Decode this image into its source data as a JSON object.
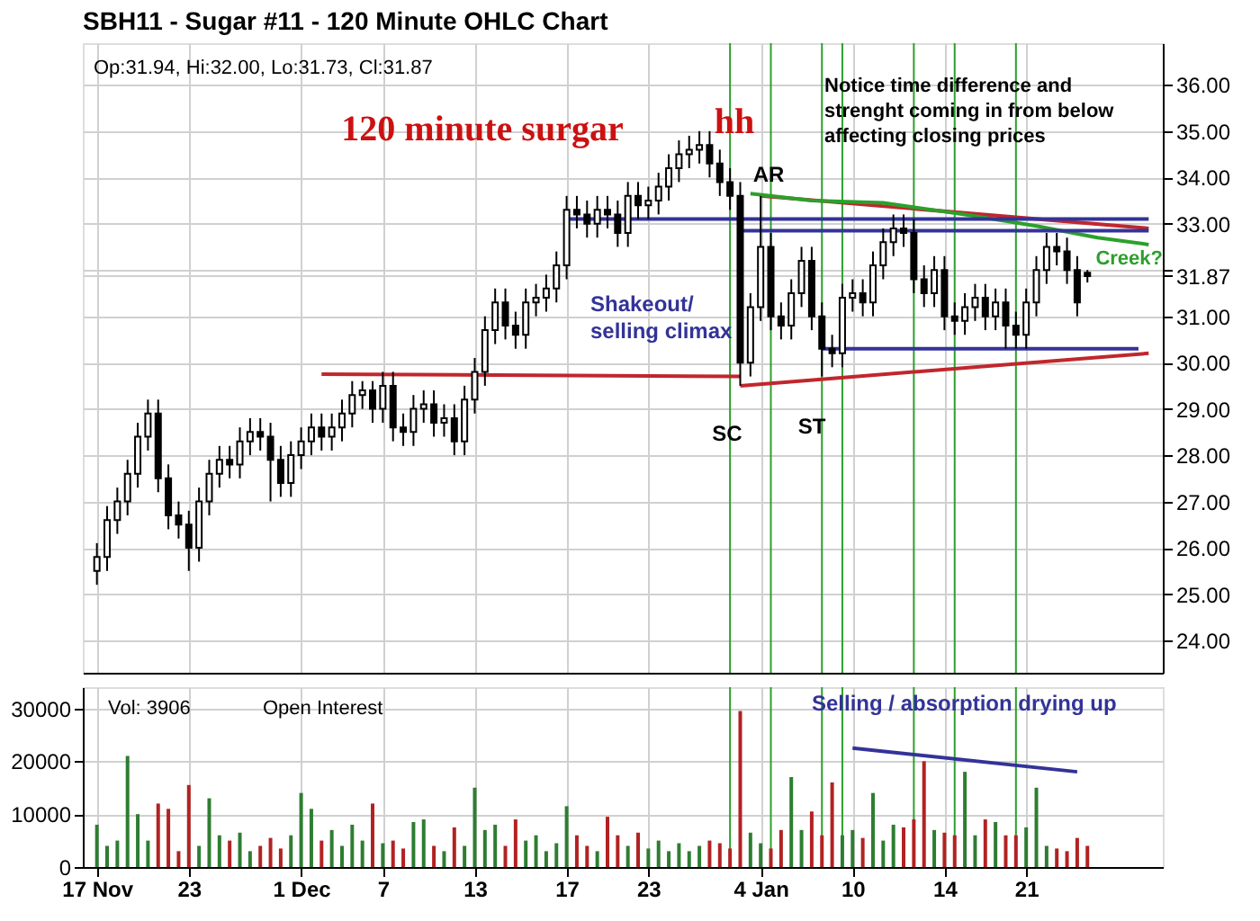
{
  "chart_data": [
    {
      "type": "candlestick",
      "title": "SBH11 - Sugar #11 - 120 Minute OHLC Chart",
      "categories": [
        "17 Nov",
        null,
        null,
        null,
        null,
        null,
        null,
        null,
        null,
        "23",
        null,
        null,
        null,
        null,
        null,
        null,
        null,
        null,
        null,
        null,
        "1 Dec",
        null,
        null,
        null,
        null,
        null,
        null,
        null,
        "7",
        null,
        null,
        null,
        null,
        null,
        null,
        null,
        null,
        "13",
        null,
        null,
        null,
        null,
        null,
        null,
        null,
        null,
        "17",
        null,
        null,
        null,
        null,
        null,
        null,
        null,
        "23",
        null,
        null,
        null,
        null,
        null,
        null,
        null,
        null,
        null,
        null,
        "4 Jan",
        null,
        null,
        null,
        null,
        null,
        null,
        null,
        null,
        "10",
        null,
        null,
        null,
        null,
        null,
        null,
        null,
        null,
        "14",
        null,
        null,
        null,
        null,
        null,
        null,
        null,
        "21",
        null,
        null,
        null,
        null,
        null,
        null,
        null,
        null,
        null,
        null,
        null,
        null
      ],
      "ohlc": [
        [
          25.5,
          26.1,
          25.2,
          25.8
        ],
        [
          25.8,
          26.9,
          25.5,
          26.6
        ],
        [
          26.6,
          27.3,
          26.3,
          27.0
        ],
        [
          27.0,
          27.9,
          26.7,
          27.6
        ],
        [
          27.6,
          28.7,
          27.3,
          28.4
        ],
        [
          28.4,
          29.2,
          28.1,
          28.9
        ],
        [
          28.9,
          29.2,
          27.2,
          27.5
        ],
        [
          27.5,
          27.8,
          26.4,
          26.7
        ],
        [
          26.7,
          27.0,
          26.2,
          26.5
        ],
        [
          26.5,
          26.8,
          25.5,
          26.0
        ],
        [
          26.0,
          27.3,
          25.7,
          27.0
        ],
        [
          27.0,
          27.9,
          26.7,
          27.6
        ],
        [
          27.6,
          28.2,
          27.3,
          27.9
        ],
        [
          27.9,
          28.2,
          27.5,
          27.8
        ],
        [
          27.8,
          28.6,
          27.5,
          28.3
        ],
        [
          28.3,
          28.8,
          28.0,
          28.5
        ],
        [
          28.5,
          28.8,
          28.1,
          28.4
        ],
        [
          28.4,
          28.7,
          27.0,
          27.9
        ],
        [
          27.9,
          28.2,
          27.1,
          27.4
        ],
        [
          27.4,
          28.3,
          27.1,
          28.0
        ],
        [
          28.0,
          28.6,
          27.7,
          28.3
        ],
        [
          28.3,
          28.9,
          28.0,
          28.6
        ],
        [
          28.6,
          28.9,
          28.1,
          28.4
        ],
        [
          28.4,
          28.9,
          28.1,
          28.6
        ],
        [
          28.6,
          29.2,
          28.3,
          28.9
        ],
        [
          28.9,
          29.6,
          28.6,
          29.3
        ],
        [
          29.3,
          29.6,
          29.0,
          29.4
        ],
        [
          29.4,
          29.6,
          28.7,
          29.0
        ],
        [
          29.0,
          29.8,
          28.7,
          29.5
        ],
        [
          29.5,
          29.8,
          28.3,
          28.6
        ],
        [
          28.6,
          28.9,
          28.2,
          28.5
        ],
        [
          28.5,
          29.3,
          28.2,
          29.0
        ],
        [
          29.0,
          29.4,
          28.7,
          29.1
        ],
        [
          29.1,
          29.4,
          28.4,
          28.7
        ],
        [
          28.7,
          29.1,
          28.4,
          28.8
        ],
        [
          28.8,
          29.1,
          28.0,
          28.3
        ],
        [
          28.3,
          29.5,
          28.0,
          29.2
        ],
        [
          29.2,
          30.1,
          28.9,
          29.8
        ],
        [
          29.8,
          31.0,
          29.5,
          30.7
        ],
        [
          30.7,
          31.6,
          30.4,
          31.3
        ],
        [
          31.3,
          31.6,
          30.5,
          30.8
        ],
        [
          30.8,
          31.1,
          30.3,
          30.6
        ],
        [
          30.6,
          31.6,
          30.3,
          31.3
        ],
        [
          31.3,
          31.7,
          31.0,
          31.4
        ],
        [
          31.4,
          31.9,
          31.1,
          31.6
        ],
        [
          31.6,
          32.4,
          31.3,
          32.1
        ],
        [
          32.1,
          33.6,
          31.8,
          33.3
        ],
        [
          33.3,
          33.6,
          32.9,
          33.2
        ],
        [
          33.2,
          33.5,
          32.7,
          33.0
        ],
        [
          33.0,
          33.6,
          32.7,
          33.3
        ],
        [
          33.3,
          33.6,
          32.9,
          33.2
        ],
        [
          33.2,
          33.5,
          32.5,
          32.8
        ],
        [
          32.8,
          33.9,
          32.5,
          33.6
        ],
        [
          33.6,
          33.9,
          33.1,
          33.4
        ],
        [
          33.4,
          33.8,
          33.1,
          33.5
        ],
        [
          33.5,
          34.1,
          33.2,
          33.8
        ],
        [
          33.8,
          34.5,
          33.5,
          34.2
        ],
        [
          34.2,
          34.8,
          33.9,
          34.5
        ],
        [
          34.5,
          34.9,
          34.2,
          34.6
        ],
        [
          34.6,
          35.0,
          34.3,
          34.7
        ],
        [
          34.7,
          35.0,
          34.0,
          34.3
        ],
        [
          34.3,
          34.6,
          33.6,
          33.9
        ],
        [
          33.9,
          34.2,
          33.3,
          33.6
        ],
        [
          33.6,
          33.9,
          29.5,
          30.0
        ],
        [
          30.0,
          31.5,
          29.7,
          31.2
        ],
        [
          31.2,
          33.6,
          30.9,
          32.5
        ],
        [
          32.5,
          32.8,
          30.7,
          31.0
        ],
        [
          31.0,
          31.3,
          30.5,
          30.8
        ],
        [
          30.8,
          31.8,
          30.5,
          31.5
        ],
        [
          31.5,
          32.5,
          31.2,
          32.2
        ],
        [
          32.2,
          32.5,
          30.7,
          31.0
        ],
        [
          31.0,
          31.3,
          29.7,
          30.3
        ],
        [
          30.3,
          30.6,
          29.9,
          30.2
        ],
        [
          30.2,
          31.7,
          29.9,
          31.4
        ],
        [
          31.4,
          31.8,
          31.1,
          31.5
        ],
        [
          31.5,
          31.8,
          31.0,
          31.3
        ],
        [
          31.3,
          32.4,
          31.0,
          32.1
        ],
        [
          32.1,
          32.9,
          31.8,
          32.6
        ],
        [
          32.6,
          33.2,
          32.3,
          32.9
        ],
        [
          32.9,
          33.2,
          32.5,
          32.8
        ],
        [
          32.8,
          33.1,
          31.5,
          31.8
        ],
        [
          31.8,
          32.1,
          31.2,
          31.5
        ],
        [
          31.5,
          32.3,
          31.2,
          32.0
        ],
        [
          32.0,
          32.3,
          30.7,
          31.0
        ],
        [
          31.0,
          31.3,
          30.6,
          30.9
        ],
        [
          30.9,
          31.5,
          30.6,
          31.2
        ],
        [
          31.2,
          31.7,
          30.9,
          31.4
        ],
        [
          31.4,
          31.7,
          30.7,
          31.0
        ],
        [
          31.0,
          31.6,
          30.7,
          31.3
        ],
        [
          31.3,
          31.6,
          30.3,
          30.8
        ],
        [
          30.8,
          31.1,
          30.3,
          30.6
        ],
        [
          30.6,
          31.6,
          30.3,
          31.3
        ],
        [
          31.3,
          32.3,
          31.0,
          32.0
        ],
        [
          32.0,
          32.8,
          31.7,
          32.5
        ],
        [
          32.5,
          32.8,
          32.1,
          32.4
        ],
        [
          32.4,
          32.7,
          31.7,
          32.0
        ],
        [
          32.0,
          32.3,
          31.0,
          31.3
        ],
        [
          31.94,
          32.0,
          31.73,
          31.87
        ],
        null,
        null,
        null,
        null,
        null,
        null
      ],
      "color": "#000000",
      "series": [
        {
          "type": "line",
          "color": "#c0272d",
          "values": [
            null,
            null,
            null,
            null,
            null,
            null,
            null,
            null,
            null,
            null,
            null,
            null,
            null,
            null,
            null,
            null,
            null,
            null,
            null,
            null,
            null,
            null,
            29.75,
            null,
            null,
            null,
            null,
            null,
            null,
            null,
            null,
            null,
            null,
            null,
            null,
            null,
            null,
            null,
            null,
            null,
            null,
            null,
            null,
            null,
            null,
            null,
            null,
            null,
            null,
            null,
            null,
            null,
            null,
            null,
            null,
            null,
            null,
            null,
            null,
            null,
            null,
            null,
            null,
            29.7,
            null,
            null,
            null,
            null,
            null,
            null,
            null,
            null,
            null,
            null,
            null,
            null,
            null,
            null,
            null,
            null,
            null,
            null,
            null,
            null,
            null,
            null,
            null,
            null,
            null,
            null,
            null,
            null,
            null,
            null,
            null,
            null,
            null,
            null,
            null,
            null,
            null,
            null,
            null,
            null
          ]
        },
        {
          "type": "line",
          "color": "#c0272d",
          "values": [
            null,
            null,
            null,
            null,
            null,
            null,
            null,
            null,
            null,
            null,
            null,
            null,
            null,
            null,
            null,
            null,
            null,
            null,
            null,
            null,
            null,
            null,
            null,
            null,
            null,
            null,
            null,
            null,
            null,
            null,
            null,
            null,
            null,
            null,
            null,
            null,
            null,
            null,
            null,
            null,
            null,
            null,
            null,
            null,
            null,
            null,
            null,
            null,
            null,
            null,
            null,
            null,
            null,
            null,
            null,
            null,
            null,
            null,
            null,
            null,
            null,
            null,
            null,
            29.5,
            null,
            null,
            null,
            null,
            null,
            null,
            null,
            null,
            null,
            null,
            null,
            null,
            null,
            null,
            null,
            null,
            null,
            null,
            null,
            null,
            null,
            null,
            null,
            null,
            null,
            null,
            null,
            null,
            null,
            null,
            null,
            null,
            null,
            null,
            null,
            null,
            null,
            null,
            null,
            30.2
          ]
        },
        {
          "type": "line",
          "color": "#c0272d",
          "values": [
            null,
            null,
            null,
            null,
            null,
            null,
            null,
            null,
            null,
            null,
            null,
            null,
            null,
            null,
            null,
            null,
            null,
            null,
            null,
            null,
            null,
            null,
            null,
            null,
            null,
            null,
            null,
            null,
            null,
            null,
            null,
            null,
            null,
            null,
            null,
            null,
            null,
            null,
            null,
            null,
            null,
            null,
            null,
            null,
            null,
            null,
            null,
            null,
            null,
            null,
            null,
            null,
            null,
            null,
            null,
            null,
            null,
            null,
            null,
            null,
            null,
            null,
            null,
            null,
            null,
            33.6,
            null,
            null,
            null,
            null,
            null,
            null,
            null,
            null,
            null,
            null,
            null,
            null,
            null,
            null,
            null,
            null,
            null,
            null,
            null,
            null,
            null,
            null,
            null,
            null,
            null,
            null,
            null,
            null,
            null,
            null,
            null,
            null,
            null,
            null,
            null,
            null,
            null,
            32.9
          ]
        },
        {
          "type": "line",
          "color": "#2ca02c",
          "values": [
            null,
            null,
            null,
            null,
            null,
            null,
            null,
            null,
            null,
            null,
            null,
            null,
            null,
            null,
            null,
            null,
            null,
            null,
            null,
            null,
            null,
            null,
            null,
            null,
            null,
            null,
            null,
            null,
            null,
            null,
            null,
            null,
            null,
            null,
            null,
            null,
            null,
            null,
            null,
            null,
            null,
            null,
            null,
            null,
            null,
            null,
            null,
            null,
            null,
            null,
            null,
            null,
            null,
            null,
            null,
            null,
            null,
            null,
            null,
            null,
            null,
            null,
            null,
            null,
            33.65,
            null,
            null,
            null,
            null,
            null,
            33.5,
            null,
            null,
            null,
            null,
            null,
            null,
            33.45,
            null,
            null,
            null,
            null,
            null,
            null,
            null,
            33.2,
            null,
            null,
            null,
            null,
            null,
            null,
            32.95,
            null,
            null,
            null,
            null,
            null,
            32.7,
            null,
            null,
            null,
            null,
            32.55
          ]
        },
        {
          "type": "line",
          "color": "#333399",
          "values": [
            null,
            null,
            null,
            null,
            null,
            null,
            null,
            null,
            null,
            null,
            null,
            null,
            null,
            null,
            null,
            null,
            null,
            null,
            null,
            null,
            null,
            null,
            null,
            null,
            null,
            null,
            null,
            null,
            null,
            null,
            null,
            null,
            null,
            null,
            null,
            null,
            null,
            null,
            null,
            null,
            null,
            null,
            null,
            null,
            null,
            null,
            33.1,
            null,
            null,
            null,
            null,
            null,
            null,
            null,
            null,
            null,
            null,
            null,
            null,
            null,
            null,
            null,
            null,
            null,
            null,
            null,
            null,
            null,
            null,
            null,
            null,
            null,
            null,
            null,
            null,
            null,
            null,
            null,
            null,
            null,
            null,
            null,
            null,
            null,
            null,
            null,
            null,
            null,
            null,
            null,
            null,
            null,
            null,
            null,
            null,
            null,
            null,
            null,
            null,
            null,
            null,
            null,
            null,
            33.1
          ]
        },
        {
          "type": "line",
          "color": "#333399",
          "values": [
            null,
            null,
            null,
            null,
            null,
            null,
            null,
            null,
            null,
            null,
            null,
            null,
            null,
            null,
            null,
            null,
            null,
            null,
            null,
            null,
            null,
            null,
            null,
            null,
            null,
            null,
            null,
            null,
            null,
            null,
            null,
            null,
            null,
            null,
            null,
            null,
            null,
            null,
            null,
            null,
            null,
            null,
            null,
            null,
            null,
            null,
            null,
            null,
            null,
            null,
            null,
            null,
            null,
            null,
            null,
            null,
            null,
            null,
            null,
            null,
            null,
            null,
            null,
            32.85,
            null,
            null,
            null,
            null,
            null,
            null,
            null,
            null,
            null,
            null,
            null,
            null,
            null,
            null,
            null,
            null,
            null,
            null,
            null,
            null,
            null,
            null,
            null,
            null,
            null,
            null,
            null,
            null,
            null,
            null,
            null,
            null,
            null,
            null,
            null,
            null,
            null,
            null,
            null,
            32.85
          ]
        },
        {
          "type": "line",
          "color": "#333399",
          "values": [
            null,
            null,
            null,
            null,
            null,
            null,
            null,
            null,
            null,
            null,
            null,
            null,
            null,
            null,
            null,
            null,
            null,
            null,
            null,
            null,
            null,
            null,
            null,
            null,
            null,
            null,
            null,
            null,
            null,
            null,
            null,
            null,
            null,
            null,
            null,
            null,
            null,
            null,
            null,
            null,
            null,
            null,
            null,
            null,
            null,
            null,
            null,
            null,
            null,
            null,
            null,
            null,
            null,
            null,
            null,
            null,
            null,
            null,
            null,
            null,
            null,
            null,
            null,
            null,
            null,
            null,
            null,
            null,
            null,
            null,
            null,
            30.3,
            null,
            null,
            null,
            null,
            null,
            null,
            null,
            null,
            null,
            null,
            null,
            null,
            null,
            null,
            null,
            null,
            null,
            null,
            null,
            null,
            null,
            null,
            null,
            null,
            null,
            null,
            null,
            null,
            null,
            null,
            30.3,
            null
          ]
        }
      ],
      "ylim": [
        23.3,
        36.9
      ],
      "yticks": [
        {
          "value": 24,
          "label": "24.00"
        },
        {
          "value": 25,
          "label": "25.00"
        },
        {
          "value": 26,
          "label": "26.00"
        },
        {
          "value": 27,
          "label": "27.00"
        },
        {
          "value": 28,
          "label": "28.00"
        },
        {
          "value": 29,
          "label": "29.00"
        },
        {
          "value": 30,
          "label": "30.00"
        },
        {
          "value": 31,
          "label": "31.00"
        },
        {
          "value": 31.87,
          "label": "31.87"
        },
        {
          "value": 32,
          "label": null
        },
        {
          "value": 33,
          "label": "33.00"
        },
        {
          "value": 34,
          "label": "34.00"
        },
        {
          "value": 35,
          "label": "35.00"
        },
        {
          "value": 36,
          "label": "36.00"
        }
      ],
      "tick_labels": "y",
      "grid": true,
      "annotations": [
        "Op:31.94, Hi:32.00, Lo:31.73, Cl:31.87",
        "120 minute surgar",
        "hh",
        "Shakeout/\nselling climax",
        "Notice time difference and\nstrenght coming in from below\naffecting closing prices",
        "AR",
        "SC",
        "ST",
        "Creek?"
      ]
    },
    {
      "type": "bar",
      "values": [
        8000,
        4000,
        5000,
        21000,
        10000,
        5000,
        12000,
        11000,
        3000,
        15500,
        4000,
        13000,
        6000,
        5000,
        6500,
        3000,
        4000,
        5500,
        3500,
        6000,
        14000,
        11000,
        5000,
        7000,
        4000,
        8000,
        5000,
        12000,
        4500,
        5000,
        3500,
        8500,
        9000,
        4000,
        3000,
        7500,
        4000,
        15000,
        7000,
        8000,
        4000,
        9000,
        5000,
        6000,
        3000,
        4500,
        11500,
        6000,
        4000,
        3000,
        9500,
        6000,
        4000,
        6500,
        3500,
        5000,
        3000,
        4500,
        3000,
        4000,
        5000,
        4500,
        3500,
        29500,
        6500,
        4500,
        3500,
        7000,
        17000,
        7000,
        10500,
        6000,
        16000,
        6000,
        7000,
        5500,
        14000,
        5000,
        8000,
        7500,
        9000,
        20000,
        7000,
        6500,
        6000,
        18000,
        6000,
        9000,
        8500,
        6000,
        6000,
        7500,
        15000,
        4000,
        3500,
        3000,
        5500,
        4000,
        null,
        null,
        null,
        null,
        null,
        null
      ],
      "colors": [
        "#2e7d32",
        "#2e7d32",
        "#2e7d32",
        "#2e7d32",
        "#2e7d32",
        "#2e7d32",
        "#b22222",
        "#b22222",
        "#b22222",
        "#b22222",
        "#2e7d32",
        "#2e7d32",
        "#2e7d32",
        "#b22222",
        "#2e7d32",
        "#2e7d32",
        "#b22222",
        "#b22222",
        "#b22222",
        "#2e7d32",
        "#2e7d32",
        "#2e7d32",
        "#b22222",
        "#2e7d32",
        "#2e7d32",
        "#2e7d32",
        "#2e7d32",
        "#b22222",
        "#2e7d32",
        "#b22222",
        "#b22222",
        "#2e7d32",
        "#2e7d32",
        "#b22222",
        "#2e7d32",
        "#b22222",
        "#2e7d32",
        "#2e7d32",
        "#2e7d32",
        "#2e7d32",
        "#b22222",
        "#b22222",
        "#2e7d32",
        "#2e7d32",
        "#2e7d32",
        "#2e7d32",
        "#2e7d32",
        "#b22222",
        "#b22222",
        "#2e7d32",
        "#b22222",
        "#b22222",
        "#2e7d32",
        "#b22222",
        "#2e7d32",
        "#2e7d32",
        "#2e7d32",
        "#2e7d32",
        "#2e7d32",
        "#2e7d32",
        "#b22222",
        "#b22222",
        "#b22222",
        "#b22222",
        "#2e7d32",
        "#2e7d32",
        "#b22222",
        "#b22222",
        "#2e7d32",
        "#2e7d32",
        "#b22222",
        "#b22222",
        "#b22222",
        "#2e7d32",
        "#2e7d32",
        "#b22222",
        "#2e7d32",
        "#2e7d32",
        "#2e7d32",
        "#b22222",
        "#b22222",
        "#b22222",
        "#2e7d32",
        "#b22222",
        "#b22222",
        "#2e7d32",
        "#2e7d32",
        "#b22222",
        "#2e7d32",
        "#b22222",
        "#b22222",
        "#2e7d32",
        "#2e7d32",
        "#2e7d32",
        "#b22222",
        "#b22222",
        "#b22222",
        "#b22222",
        null,
        null,
        null,
        null,
        null,
        null
      ],
      "series": [
        {
          "type": "line",
          "color": "#333399",
          "values": [
            null,
            null,
            null,
            null,
            null,
            null,
            null,
            null,
            null,
            null,
            null,
            null,
            null,
            null,
            null,
            null,
            null,
            null,
            null,
            null,
            null,
            null,
            null,
            null,
            null,
            null,
            null,
            null,
            null,
            null,
            null,
            null,
            null,
            null,
            null,
            null,
            null,
            null,
            null,
            null,
            null,
            null,
            null,
            null,
            null,
            null,
            null,
            null,
            null,
            null,
            null,
            null,
            null,
            null,
            null,
            null,
            null,
            null,
            null,
            null,
            null,
            null,
            null,
            null,
            null,
            null,
            null,
            null,
            null,
            null,
            null,
            null,
            null,
            null,
            22500,
            null,
            null,
            null,
            null,
            null,
            null,
            null,
            null,
            null,
            null,
            null,
            null,
            null,
            null,
            null,
            null,
            null,
            null,
            null,
            null,
            null,
            18000,
            null,
            null,
            null,
            null,
            null,
            null,
            null
          ]
        }
      ],
      "ylim": [
        0,
        34000
      ],
      "yticks": [
        0,
        10000,
        20000,
        30000
      ],
      "grid": true,
      "annotations": [
        "Vol: 3906",
        "Open Interest",
        "Selling / absorption drying up"
      ]
    }
  ]
}
